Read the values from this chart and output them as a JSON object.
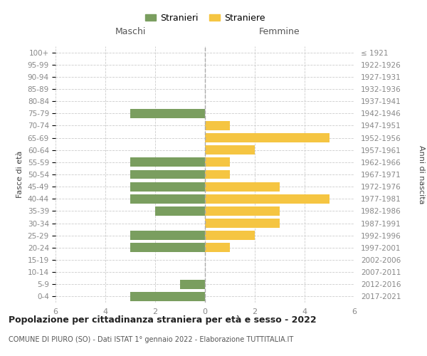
{
  "age_groups": [
    "0-4",
    "5-9",
    "10-14",
    "15-19",
    "20-24",
    "25-29",
    "30-34",
    "35-39",
    "40-44",
    "45-49",
    "50-54",
    "55-59",
    "60-64",
    "65-69",
    "70-74",
    "75-79",
    "80-84",
    "85-89",
    "90-94",
    "95-99",
    "100+"
  ],
  "birth_years": [
    "2017-2021",
    "2012-2016",
    "2007-2011",
    "2002-2006",
    "1997-2001",
    "1992-1996",
    "1987-1991",
    "1982-1986",
    "1977-1981",
    "1972-1976",
    "1967-1971",
    "1962-1966",
    "1957-1961",
    "1952-1956",
    "1947-1951",
    "1942-1946",
    "1937-1941",
    "1932-1936",
    "1927-1931",
    "1922-1926",
    "≤ 1921"
  ],
  "males": [
    3,
    1,
    0,
    0,
    3,
    3,
    0,
    2,
    3,
    3,
    3,
    3,
    0,
    0,
    0,
    3,
    0,
    0,
    0,
    0,
    0
  ],
  "females": [
    0,
    0,
    0,
    0,
    1,
    2,
    3,
    3,
    5,
    3,
    1,
    1,
    2,
    5,
    1,
    0,
    0,
    0,
    0,
    0,
    0
  ],
  "male_color": "#7a9e5f",
  "female_color": "#f5c542",
  "title": "Popolazione per cittadinanza straniera per età e sesso - 2022",
  "subtitle": "COMUNE DI PIURO (SO) - Dati ISTAT 1° gennaio 2022 - Elaborazione TUTTITALIA.IT",
  "xlabel_left": "Maschi",
  "xlabel_right": "Femmine",
  "ylabel_left": "Fasce di età",
  "ylabel_right": "Anni di nascita",
  "legend_male": "Stranieri",
  "legend_female": "Straniere",
  "xlim": 6,
  "background_color": "#ffffff",
  "grid_color": "#cccccc",
  "tick_color": "#888888",
  "spine_color": "#cccccc"
}
